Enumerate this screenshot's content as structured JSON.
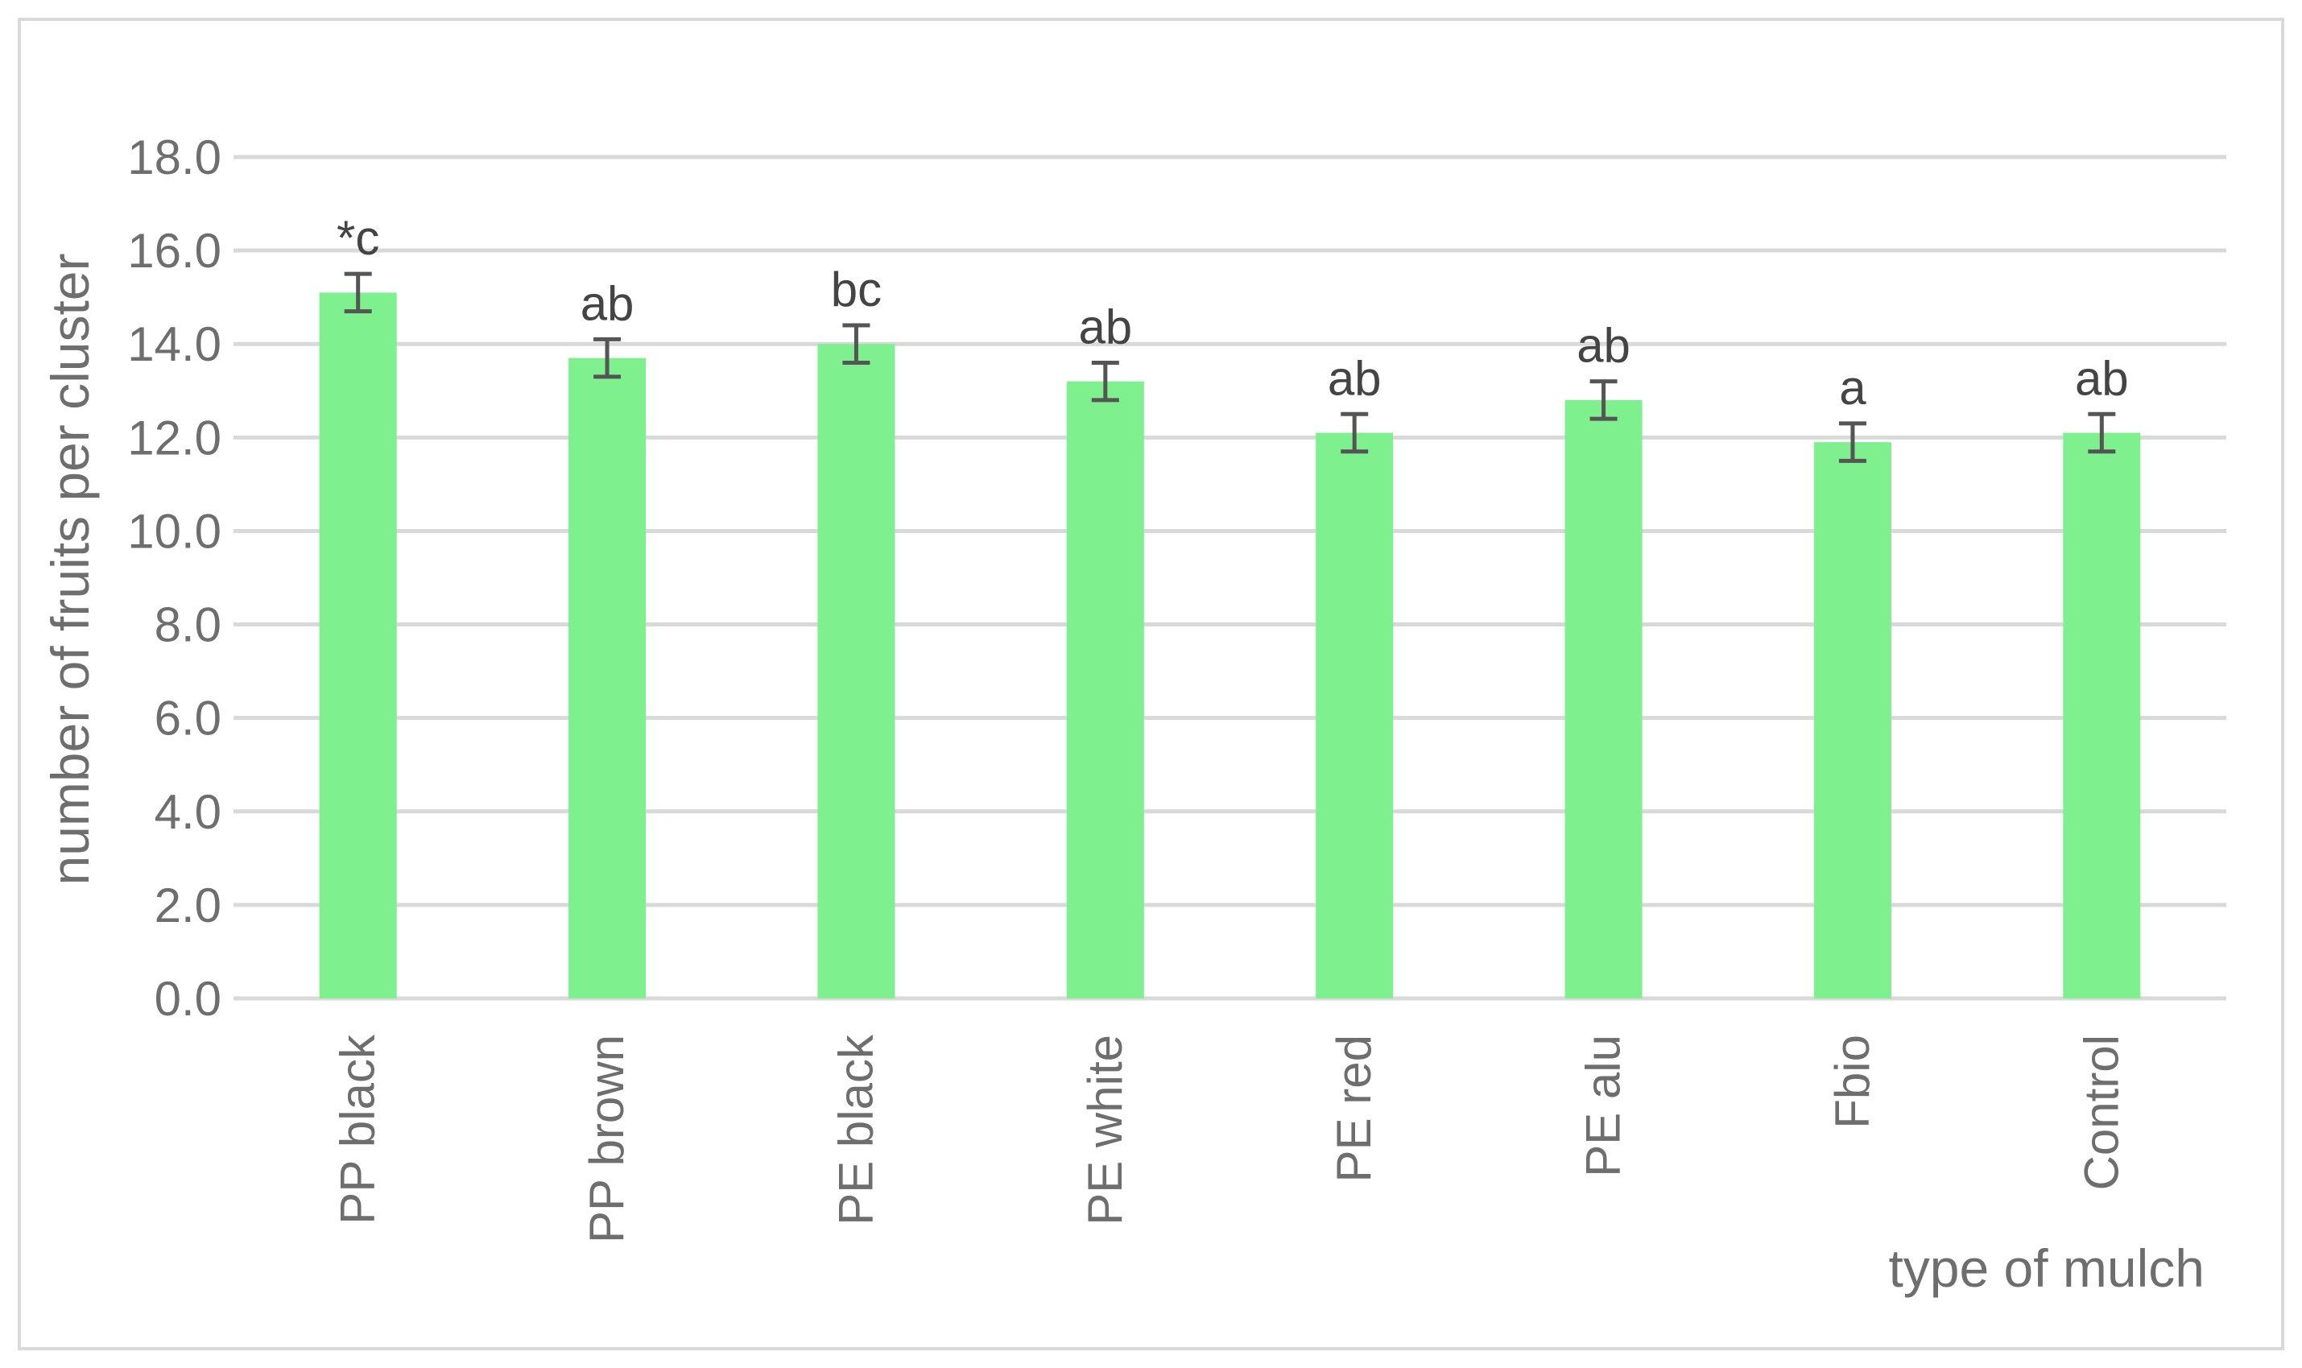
{
  "chart_data": {
    "type": "bar",
    "categories": [
      "PP black",
      "PP brown",
      "PE black",
      "PE white",
      "PE red",
      "PE alu",
      "Fbio",
      "Control"
    ],
    "values": [
      15.1,
      13.7,
      14.0,
      13.2,
      12.1,
      12.8,
      11.9,
      12.1
    ],
    "errors": [
      0.4,
      0.4,
      0.4,
      0.4,
      0.4,
      0.4,
      0.4,
      0.4
    ],
    "significance_labels": [
      "*c",
      "ab",
      "bc",
      "ab",
      "ab",
      "ab",
      "a",
      "ab"
    ],
    "ylabel": "number of fruits  per cluster",
    "xlabel": "type of mulch",
    "ylim": [
      0,
      18
    ],
    "yticks": [
      "0.0",
      "2.0",
      "4.0",
      "6.0",
      "8.0",
      "10.0",
      "12.0",
      "14.0",
      "16.0",
      "18.0"
    ],
    "grid": true,
    "bar_color": "#7ef08e",
    "error_bar_color": "#555555",
    "grid_color": "#d9d9d9"
  }
}
